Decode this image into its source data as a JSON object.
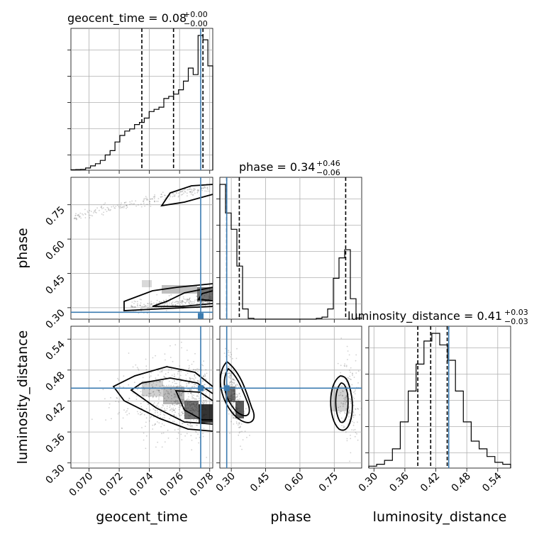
{
  "colors": {
    "truth": "#3b7bb0",
    "hist": "#000000",
    "grid": "#b0b0b0",
    "scatter": "#555555"
  },
  "titles": {
    "geocent_time": {
      "text": "geocent_time = 0.08",
      "up": "+0.00",
      "down": "−0.00"
    },
    "phase": {
      "text": "phase = 0.34",
      "up": "+0.46",
      "down": "−0.06"
    },
    "luminosity_distance": {
      "text": "luminosity_distance = 0.41",
      "up": "+0.03",
      "down": "−0.03"
    }
  },
  "labels": {
    "x0": "geocent_time",
    "x1": "phase",
    "x2": "luminosity_distance",
    "y1": "phase",
    "y2": "luminosity_distance"
  },
  "chart_data": {
    "type": "corner",
    "parameters": [
      "geocent_time",
      "phase",
      "luminosity_distance"
    ],
    "ranges": {
      "geocent_time": [
        0.0688,
        0.0782
      ],
      "phase": [
        0.25,
        0.87
      ],
      "luminosity_distance": [
        0.29,
        0.565
      ]
    },
    "truths": {
      "geocent_time": 0.0774,
      "phase": 0.28,
      "luminosity_distance": 0.445
    },
    "quantiles": {
      "geocent_time": [
        0.0735,
        0.0756,
        0.07755
      ],
      "phase": [
        0.28,
        0.335,
        0.8
      ],
      "luminosity_distance": [
        0.385,
        0.41,
        0.442
      ]
    },
    "ticks": {
      "geocent_time": [
        "0.070",
        "0.072",
        "0.074",
        "0.076",
        "0.078"
      ],
      "phase": [
        "0.30",
        "0.45",
        "0.60",
        "0.75"
      ],
      "luminosity_distance": [
        "0.30",
        "0.36",
        "0.42",
        "0.48",
        "0.54"
      ]
    },
    "hist_geocent_time": [
      0.2,
      0.3,
      0.4,
      1,
      2,
      3,
      4.5,
      7,
      9,
      13,
      16,
      18,
      19,
      21,
      22,
      24,
      27,
      28,
      29,
      33,
      34,
      35,
      37,
      41,
      47,
      44,
      62,
      60,
      48
    ],
    "hist_phase": [
      33,
      26,
      22,
      13,
      2.5,
      0.2,
      0,
      0,
      0,
      0,
      0,
      0,
      0,
      0,
      0,
      0,
      0,
      0.2,
      0.5,
      2.5,
      10,
      15,
      17,
      5,
      0.3
    ],
    "hist_luminosity_distance": [
      0.5,
      1,
      2,
      5,
      12,
      20,
      27,
      33,
      35,
      32,
      28,
      20,
      12,
      7,
      5,
      3,
      1.5,
      1
    ]
  }
}
